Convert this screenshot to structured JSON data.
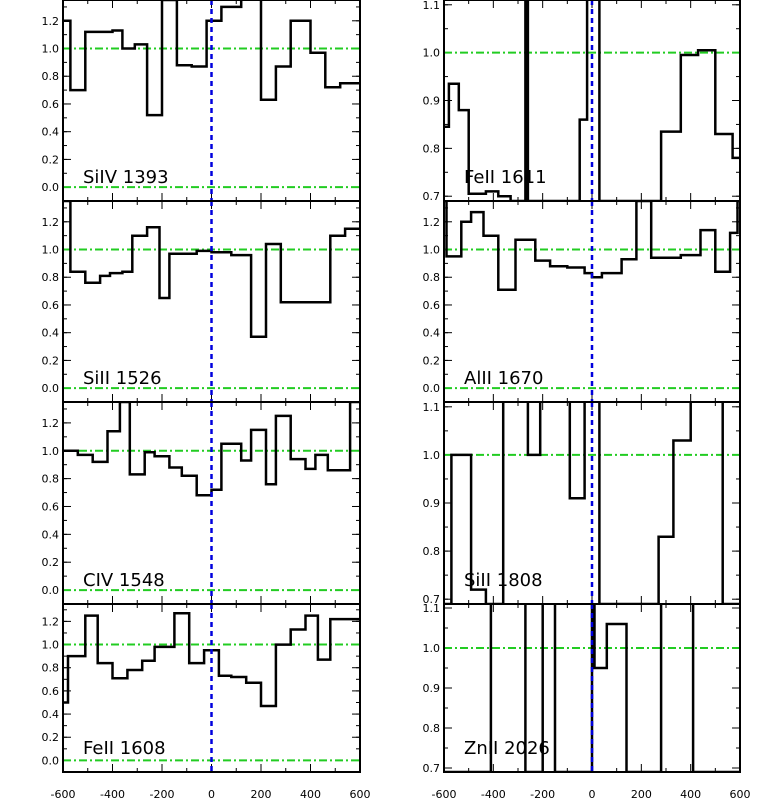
{
  "chart_data": [
    {
      "type": "line",
      "label": "SiIV 1393",
      "ylim": [
        -0.1,
        1.35
      ],
      "xlim": [
        -600,
        600
      ],
      "yticks": [
        "0.0",
        "0.2",
        "0.4",
        "0.6",
        "0.8",
        "1.0",
        "1.2"
      ],
      "xtick_labels": [],
      "step_edges": [
        -600,
        -570,
        -510,
        -400,
        -360,
        -310,
        -260,
        -200,
        -140,
        -80,
        -20,
        40,
        120,
        200,
        260,
        320,
        400,
        460,
        520,
        560,
        600
      ],
      "y": [
        1.2,
        0.7,
        1.12,
        1.13,
        1.0,
        1.03,
        0.52,
        1.35,
        0.88,
        0.87,
        1.2,
        1.3,
        1.5,
        0.63,
        0.87,
        1.2,
        0.97,
        0.72,
        0.75,
        0.75
      ]
    },
    {
      "type": "line",
      "label": "FeII 1611",
      "ylim": [
        0.69,
        1.11
      ],
      "xlim": [
        -600,
        600
      ],
      "yticks": [
        "0.7",
        "0.8",
        "0.9",
        "1.0",
        "1.1"
      ],
      "xtick_labels": [],
      "step_edges": [
        -600,
        -580,
        -540,
        -500,
        -430,
        -380,
        -330,
        -270,
        -260,
        -50,
        -20,
        30,
        70,
        280,
        360,
        430,
        500,
        570,
        600
      ],
      "y": [
        0.845,
        0.935,
        0.88,
        0.705,
        0.71,
        0.7,
        0.69,
        1.2,
        0.69,
        0.86,
        1.2,
        0.69,
        0.69,
        0.835,
        0.995,
        1.005,
        0.83,
        0.78
      ]
    },
    {
      "type": "line",
      "label": "SiII 1526",
      "ylim": [
        -0.1,
        1.35
      ],
      "xlim": [
        -600,
        600
      ],
      "yticks": [
        "0.0",
        "0.2",
        "0.4",
        "0.6",
        "0.8",
        "1.0",
        "1.2"
      ],
      "xtick_labels": [],
      "step_edges": [
        -600,
        -570,
        -510,
        -450,
        -410,
        -360,
        -320,
        -260,
        -210,
        -170,
        -120,
        -60,
        0,
        80,
        160,
        220,
        280,
        360,
        480,
        540,
        600
      ],
      "y": [
        1.35,
        0.84,
        0.76,
        0.81,
        0.83,
        0.84,
        1.1,
        1.16,
        0.65,
        0.97,
        0.97,
        0.99,
        0.98,
        0.96,
        0.37,
        1.04,
        0.62,
        0.62,
        1.1,
        1.15
      ]
    },
    {
      "type": "line",
      "label": "AlII 1670",
      "ylim": [
        -0.1,
        1.35
      ],
      "xlim": [
        -600,
        600
      ],
      "yticks": [
        "0.0",
        "0.2",
        "0.4",
        "0.6",
        "0.8",
        "1.0",
        "1.2"
      ],
      "xtick_labels": [],
      "step_edges": [
        -600,
        -590,
        -530,
        -490,
        -440,
        -380,
        -310,
        -230,
        -170,
        -100,
        -30,
        0,
        40,
        120,
        180,
        240,
        360,
        440,
        500,
        560,
        590,
        600
      ],
      "y": [
        1.35,
        0.95,
        1.2,
        1.27,
        1.1,
        0.71,
        1.07,
        0.92,
        0.88,
        0.87,
        0.83,
        0.8,
        0.83,
        0.93,
        1.35,
        0.94,
        0.96,
        1.14,
        0.84,
        1.12,
        1.35
      ]
    },
    {
      "type": "line",
      "label": "CIV 1548",
      "ylim": [
        -0.1,
        1.35
      ],
      "xlim": [
        -600,
        600
      ],
      "yticks": [
        "0.0",
        "0.2",
        "0.4",
        "0.6",
        "0.8",
        "1.0",
        "1.2"
      ],
      "xtick_labels": [],
      "step_edges": [
        -600,
        -540,
        -480,
        -420,
        -370,
        -330,
        -270,
        -230,
        -170,
        -120,
        -60,
        0,
        40,
        120,
        160,
        220,
        260,
        320,
        380,
        420,
        470,
        520,
        560,
        600
      ],
      "y": [
        1.0,
        0.97,
        0.92,
        1.14,
        1.35,
        0.83,
        0.99,
        0.96,
        0.88,
        0.82,
        0.68,
        0.72,
        1.05,
        0.93,
        1.15,
        0.76,
        1.25,
        0.94,
        0.87,
        0.97,
        0.86,
        0.86,
        1.35
      ]
    },
    {
      "type": "line",
      "label": "SiII 1808",
      "ylim": [
        0.69,
        1.11
      ],
      "xlim": [
        -600,
        600
      ],
      "yticks": [
        "0.7",
        "0.8",
        "0.9",
        "1.0",
        "1.1"
      ],
      "xtick_labels": [],
      "step_edges": [
        -600,
        -570,
        -490,
        -430,
        -370,
        -360,
        -300,
        -260,
        -210,
        -100,
        -90,
        -30,
        30,
        60,
        270,
        330,
        400,
        530,
        600
      ],
      "y": [
        0.69,
        1.0,
        0.72,
        0.69,
        0.69,
        1.2,
        1.2,
        1.0,
        1.2,
        1.2,
        0.91,
        1.2,
        0.69,
        0.69,
        0.83,
        1.03,
        1.2,
        0.69
      ]
    },
    {
      "type": "line",
      "label": "FeII 1608",
      "ylim": [
        -0.1,
        1.35
      ],
      "xlim": [
        -600,
        600
      ],
      "yticks": [
        "0.0",
        "0.2",
        "0.4",
        "0.6",
        "0.8",
        "1.0",
        "1.2"
      ],
      "xtick_labels": [
        "-600",
        "-400",
        "-200",
        "0",
        "200",
        "400",
        "600"
      ],
      "step_edges": [
        -600,
        -580,
        -510,
        -460,
        -400,
        -340,
        -280,
        -230,
        -150,
        -90,
        -30,
        30,
        80,
        140,
        200,
        260,
        320,
        380,
        430,
        480,
        540,
        600
      ],
      "y": [
        0.5,
        0.9,
        1.25,
        0.84,
        0.71,
        0.78,
        0.86,
        0.98,
        1.27,
        0.84,
        0.95,
        0.73,
        0.72,
        0.67,
        0.47,
        1.0,
        1.13,
        1.25,
        0.87,
        1.22,
        1.22
      ]
    },
    {
      "type": "line",
      "label": "ZnII 2026",
      "ylim": [
        0.69,
        1.11
      ],
      "xlim": [
        -600,
        600
      ],
      "yticks": [
        "0.7",
        "0.8",
        "0.9",
        "1.0",
        "1.1"
      ],
      "xtick_labels": [
        "-600",
        "-400",
        "-200",
        "0",
        "200",
        "400",
        "600"
      ],
      "step_edges": [
        -600,
        -410,
        -270,
        -200,
        -150,
        0,
        10,
        60,
        140,
        280,
        410,
        600
      ],
      "y": [
        0.69,
        1.2,
        0.69,
        1.2,
        0.69,
        1.2,
        0.95,
        1.06,
        0.69,
        1.2,
        0.69
      ]
    }
  ]
}
